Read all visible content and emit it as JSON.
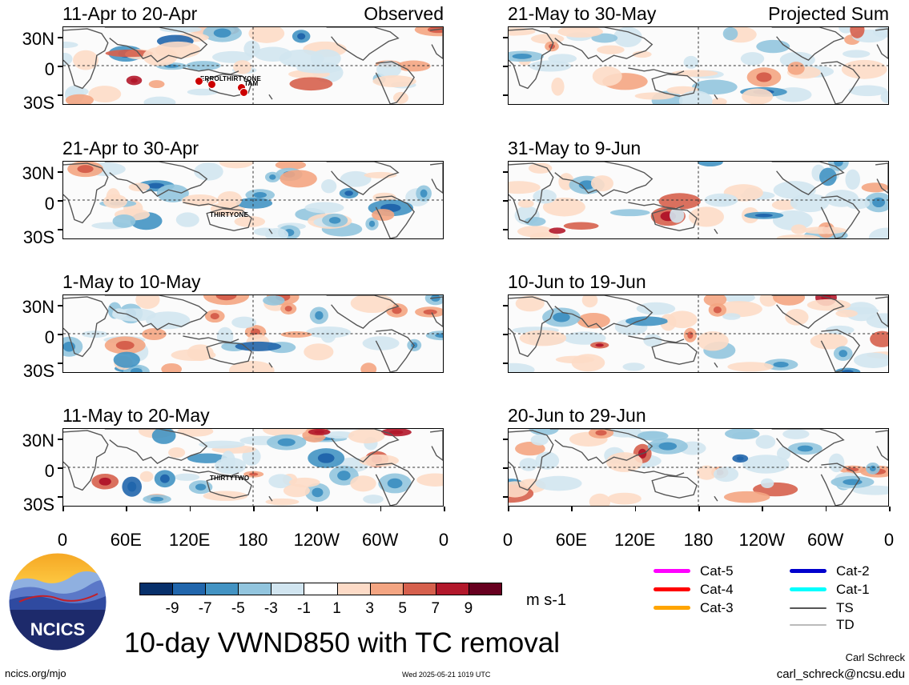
{
  "panels_left": [
    {
      "title": "11-Apr to 20-Apr",
      "tag": "Observed"
    },
    {
      "title": "21-Apr to 30-Apr",
      "tag": ""
    },
    {
      "title": "1-May to 10-May",
      "tag": ""
    },
    {
      "title": "11-May to 20-May",
      "tag": ""
    }
  ],
  "panels_right": [
    {
      "title": "21-May to 30-May",
      "tag": "Projected Sum"
    },
    {
      "title": "31-May to 9-Jun",
      "tag": ""
    },
    {
      "title": "10-Jun to 19-Jun",
      "tag": ""
    },
    {
      "title": "20-Jun to 29-Jun",
      "tag": ""
    }
  ],
  "storm_labels": {
    "errol": "ERROL",
    "thirtyone_a": "THIRTYONE",
    "tam": "TAM",
    "thirtyone_b": "THIRTYONE",
    "thirtytwo": "THIRTYTWO"
  },
  "lat_labels": [
    "30N",
    "0",
    "30S"
  ],
  "lon_labels": [
    "0",
    "60E",
    "120E",
    "180",
    "120W",
    "60W",
    "0"
  ],
  "colorbar": {
    "colors": [
      "#08306b",
      "#2166ac",
      "#4393c3",
      "#92c5de",
      "#d1e5f0",
      "#ffffff",
      "#fddbc7",
      "#f4a582",
      "#d6604d",
      "#b2182b",
      "#67001f"
    ],
    "labels": [
      "-9",
      "-7",
      "-5",
      "-3",
      "-1",
      "1",
      "3",
      "5",
      "7",
      "9"
    ],
    "unit": "m s-1"
  },
  "legend": [
    {
      "label": "Cat-5",
      "color": "#ff00ff"
    },
    {
      "label": "Cat-4",
      "color": "#ff0000"
    },
    {
      "label": "Cat-3",
      "color": "#ffa500"
    },
    {
      "label": "Cat-2",
      "color": "#0000cd"
    },
    {
      "label": "Cat-1",
      "color": "#00ffff"
    },
    {
      "label": "TS",
      "color": "#555555"
    },
    {
      "label": "TD",
      "color": "#bbbbbb"
    }
  ],
  "logo_text": "NCICS",
  "main_title": "10-day VWND850 with TC removal",
  "footer_left": "ncics.org/mjo",
  "footer_center": "Wed 2025-05-21 1019 UTC",
  "author": "Carl Schreck",
  "email": "carl_schreck@ncsu.edu"
}
